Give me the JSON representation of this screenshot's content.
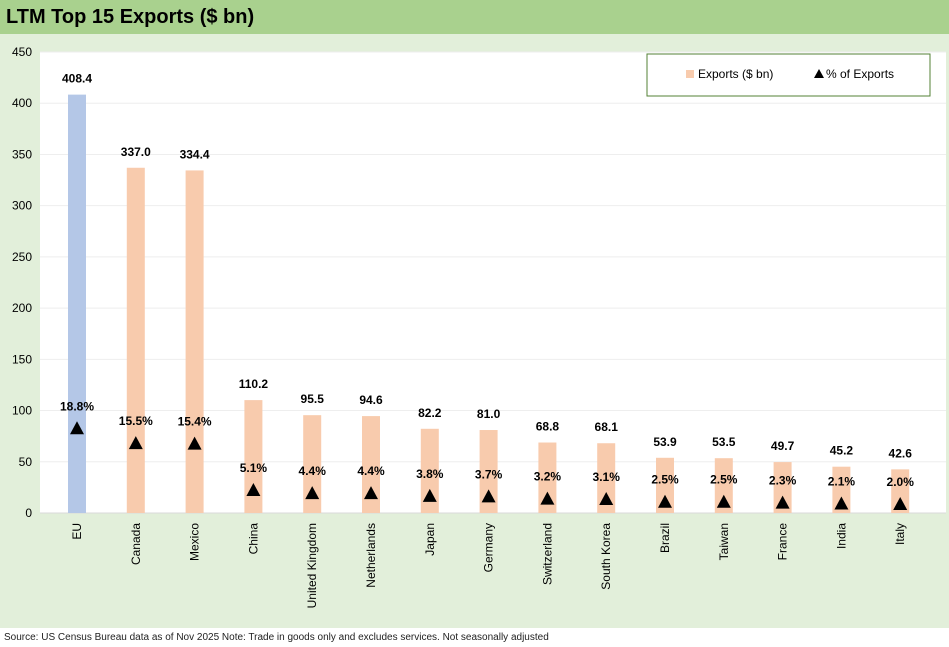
{
  "title": "LTM Top 15 Exports ($ bn)",
  "source": "Source: US Census Bureau data as of Nov 2025 Note: Trade in goods only and excludes services. Not seasonally adjusted",
  "colors": {
    "title_bar": "#a9d18e",
    "background": "#e2efda",
    "bar": "#f8cbad",
    "bar_highlight": "#b4c7e7",
    "marker": "#000000"
  },
  "chart_data": {
    "type": "bar",
    "categories": [
      "EU",
      "Canada",
      "Mexico",
      "China",
      "United Kingdom",
      "Netherlands",
      "Japan",
      "Germany",
      "Switzerland",
      "South Korea",
      "Brazil",
      "Taiwan",
      "France",
      "India",
      "Italy"
    ],
    "series": [
      {
        "name": "Exports ($ bn)",
        "type": "bar",
        "values": [
          408.4,
          337.0,
          334.4,
          110.2,
          95.5,
          94.6,
          82.2,
          81.0,
          68.8,
          68.1,
          53.9,
          53.5,
          49.7,
          45.2,
          42.6
        ],
        "labels": [
          "408.4",
          "337.0",
          "334.4",
          "110.2",
          "95.5",
          "94.6",
          "82.2",
          "81.0",
          "68.8",
          "68.1",
          "53.9",
          "53.5",
          "49.7",
          "45.2",
          "42.6"
        ]
      },
      {
        "name": "% of Exports",
        "type": "scatter",
        "marker": "triangle",
        "values": [
          18.8,
          15.5,
          15.4,
          5.1,
          4.4,
          4.4,
          3.8,
          3.7,
          3.2,
          3.1,
          2.5,
          2.5,
          2.3,
          2.1,
          2.0
        ],
        "labels": [
          "18.8%",
          "15.5%",
          "15.4%",
          "5.1%",
          "4.4%",
          "4.4%",
          "3.8%",
          "3.7%",
          "3.2%",
          "3.1%",
          "2.5%",
          "2.5%",
          "2.3%",
          "2.1%",
          "2.0%"
        ]
      }
    ],
    "highlight_category": "EU",
    "ylim": [
      0,
      450
    ],
    "yticks": [
      0,
      50,
      100,
      150,
      200,
      250,
      300,
      350,
      400,
      450
    ],
    "ytick_labels": [
      "0",
      "50",
      "100",
      "150",
      "200",
      "250",
      "300",
      "350",
      "400",
      "450"
    ],
    "grid": true,
    "legend_position": "top-right",
    "legend": [
      "Exports ($ bn)",
      "% of Exports"
    ]
  }
}
